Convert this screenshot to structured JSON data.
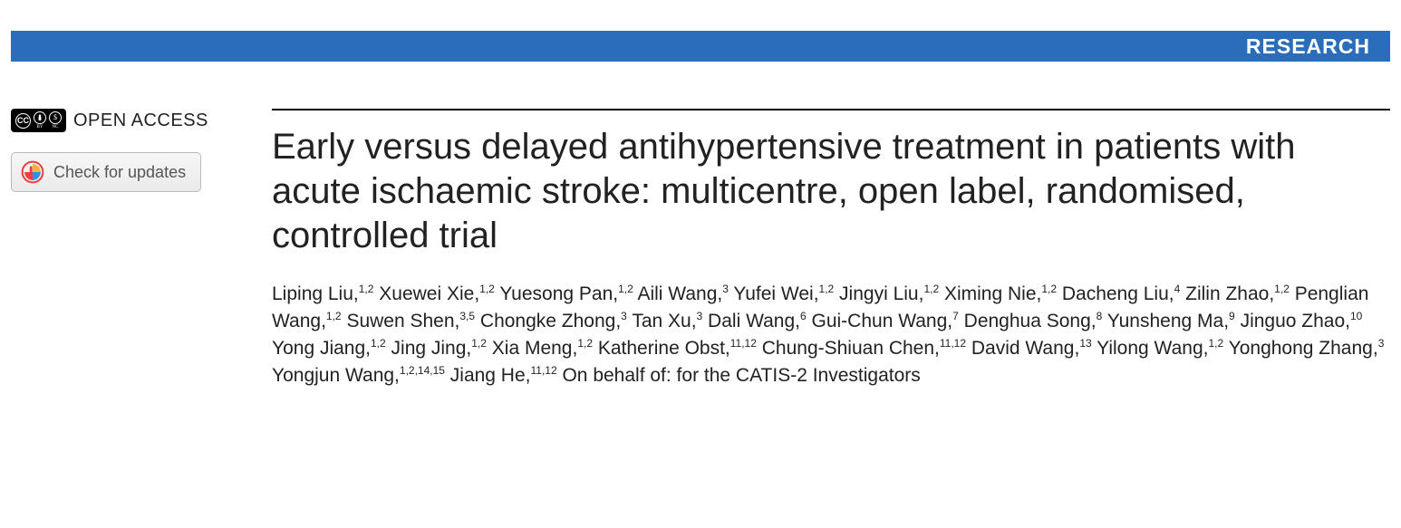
{
  "banner": {
    "label": "RESEARCH",
    "bg": "#2a6ebb"
  },
  "left": {
    "open_access_label": "OPEN ACCESS",
    "cc_main": "CC",
    "cc_by": "BY",
    "cc_nc": "NC",
    "cc_by_glyph": "⬤",
    "cc_nc_glyph": "$",
    "updates_label": "Check for updates"
  },
  "article": {
    "title": "Early versus delayed antihypertensive treatment in patients with acute ischaemic stroke: multicentre, open label, randomised, controlled trial",
    "authors": [
      {
        "name": "Liping Liu,",
        "aff": "1,2"
      },
      {
        "name": " Xuewei Xie,",
        "aff": "1,2"
      },
      {
        "name": " Yuesong Pan,",
        "aff": "1,2"
      },
      {
        "name": " Aili Wang,",
        "aff": "3"
      },
      {
        "name": " Yufei Wei,",
        "aff": "1,2"
      },
      {
        "name": " Jingyi Liu,",
        "aff": "1,2"
      },
      {
        "name": " Ximing Nie,",
        "aff": "1,2"
      },
      {
        "name": " Dacheng Liu,",
        "aff": "4"
      },
      {
        "name": " Zilin Zhao,",
        "aff": "1,2"
      },
      {
        "name": " Penglian Wang,",
        "aff": "1,2"
      },
      {
        "name": " Suwen Shen,",
        "aff": "3,5"
      },
      {
        "name": " Chongke Zhong,",
        "aff": "3"
      },
      {
        "name": " Tan Xu,",
        "aff": "3"
      },
      {
        "name": " Dali Wang,",
        "aff": "6"
      },
      {
        "name": " Gui-Chun Wang,",
        "aff": "7"
      },
      {
        "name": " Denghua Song,",
        "aff": "8"
      },
      {
        "name": " Yunsheng Ma,",
        "aff": "9"
      },
      {
        "name": " Jinguo Zhao,",
        "aff": "10"
      },
      {
        "name": " Yong Jiang,",
        "aff": "1,2"
      },
      {
        "name": " Jing Jing,",
        "aff": "1,2"
      },
      {
        "name": " Xia Meng,",
        "aff": "1,2"
      },
      {
        "name": " Katherine Obst,",
        "aff": "11,12"
      },
      {
        "name": " Chung-Shiuan Chen,",
        "aff": "11,12"
      },
      {
        "name": " David Wang,",
        "aff": "13"
      },
      {
        "name": " Yilong Wang,",
        "aff": "1,2"
      },
      {
        "name": " Yonghong Zhang,",
        "aff": "3"
      },
      {
        "name": " Yongjun Wang,",
        "aff": "1,2,14,15"
      },
      {
        "name": " Jiang He,",
        "aff": "11,12"
      }
    ],
    "behalf": " On behalf of: for the CATIS-2 Investigators"
  }
}
